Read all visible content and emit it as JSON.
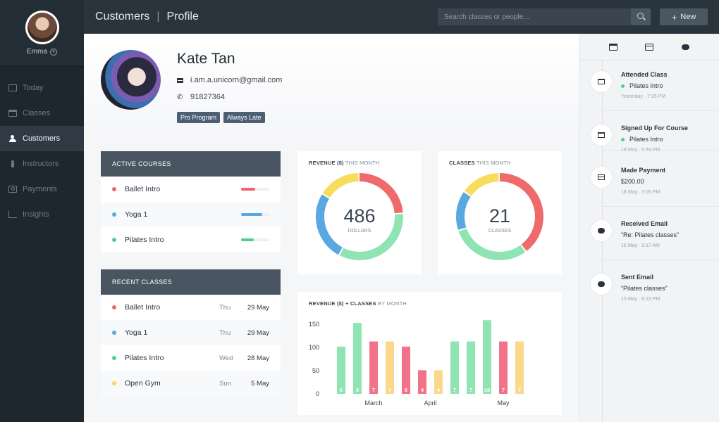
{
  "sidebar": {
    "user": "Emma",
    "items": [
      {
        "label": "Today",
        "icon": "monitor-icon"
      },
      {
        "label": "Classes",
        "icon": "calendar-icon"
      },
      {
        "label": "Customers",
        "icon": "users-icon"
      },
      {
        "label": "Instructors",
        "icon": "person-icon"
      },
      {
        "label": "Payments",
        "icon": "money-icon"
      },
      {
        "label": "Insights",
        "icon": "chart-icon"
      }
    ],
    "active": "Customers"
  },
  "header": {
    "crumb_section": "Customers",
    "crumb_sep": "|",
    "crumb_page": "Profile",
    "search_placeholder": "Search classes or people...",
    "new_label": "New"
  },
  "profile": {
    "name": "Kate Tan",
    "email": "i.am.a.unicorn@gmail.com",
    "phone": "91827364",
    "tags": [
      "Pro Program",
      "Always Late"
    ]
  },
  "active_courses": {
    "title": "ACTIVE COURSES",
    "items": [
      {
        "name": "Ballet Intro",
        "color": "#f0636b",
        "progress": 0.5
      },
      {
        "name": "Yoga 1",
        "color": "#5aa8e0",
        "progress": 0.75
      },
      {
        "name": "Pilates Intro",
        "color": "#4fd08b",
        "progress": 0.45
      }
    ]
  },
  "recent_classes": {
    "title": "RECENT CLASSES",
    "items": [
      {
        "name": "Ballet Intro",
        "day": "Thu",
        "date": "29 May",
        "color": "#f0636b"
      },
      {
        "name": "Yoga 1",
        "day": "Thu",
        "date": "29 May",
        "color": "#5aa8e0"
      },
      {
        "name": "Pilates Intro",
        "day": "Wed",
        "date": "28 May",
        "color": "#4fd08b"
      },
      {
        "name": "Open Gym",
        "day": "Sun",
        "date": "5 May",
        "color": "#f7d85a"
      }
    ]
  },
  "revenue_donut": {
    "title_bold": "REVENUE ($)",
    "title_rest": "THIS MONTH",
    "value": "486",
    "unit": "DOLLARS"
  },
  "classes_donut": {
    "title_bold": "CLASSES",
    "title_rest": "THIS MONTH",
    "value": "21",
    "unit": "CLASSES"
  },
  "monthly": {
    "title_bold": "REVENUE ($) + CLASSES",
    "title_rest": "BY MONTH"
  },
  "chart_data": [
    {
      "type": "pie",
      "variant": "donut",
      "slices": [
        {
          "color": "#ef6b6b",
          "value": 0.24
        },
        {
          "color": "#8fe4b3",
          "value": 0.34
        },
        {
          "color": "#5aa8e0",
          "value": 0.26
        },
        {
          "color": "#f8dc5c",
          "value": 0.16
        }
      ]
    },
    {
      "type": "pie",
      "variant": "donut",
      "slices": [
        {
          "color": "#ef6b6b",
          "value": 0.4
        },
        {
          "color": "#8fe4b3",
          "value": 0.3
        },
        {
          "color": "#5aa8e0",
          "value": 0.15
        },
        {
          "color": "#f8dc5c",
          "value": 0.15
        }
      ]
    },
    {
      "type": "bar",
      "y_ticks": [
        0,
        50,
        100,
        150
      ],
      "ylim": [
        0,
        170
      ],
      "x_labels": [
        {
          "label": "March",
          "at_bar": 2
        },
        {
          "label": "April",
          "at_bar": 5.5
        },
        {
          "label": "May",
          "at_bar": 10
        }
      ],
      "bars": [
        {
          "value": 102,
          "label": "6",
          "color": "#8fe4b3"
        },
        {
          "value": 153,
          "label": "9",
          "color": "#8fe4b3"
        },
        {
          "value": 113,
          "label": "7",
          "color": "#f27388"
        },
        {
          "value": 113,
          "label": "7",
          "color": "#fbd88b"
        },
        {
          "value": 102,
          "label": "6",
          "color": "#f27388"
        },
        {
          "value": 51,
          "label": "4",
          "color": "#f27388"
        },
        {
          "value": 51,
          "label": "4",
          "color": "#fbd88b"
        },
        {
          "value": 113,
          "label": "7",
          "color": "#8fe4b3"
        },
        {
          "value": 113,
          "label": "7",
          "color": "#8fe4b3"
        },
        {
          "value": 159,
          "label": "10",
          "color": "#8fe4b3"
        },
        {
          "value": 113,
          "label": "7",
          "color": "#f27388"
        },
        {
          "value": 113,
          "label": "7",
          "color": "#fbd88b"
        }
      ]
    }
  ],
  "activity": [
    {
      "title": "Attended Class",
      "detail": "Pilates Intro",
      "detail_dot": true,
      "time": "Yesterday  ·  7:15 PM",
      "icon": "cal"
    },
    {
      "title": "Signed Up For Course",
      "detail": "Pilates Intro",
      "detail_dot": true,
      "time": "18 May  ·  5:49 PM",
      "icon": "cal"
    },
    {
      "title": "Made Payment",
      "detail": "$200.00",
      "detail_dot": false,
      "time": "18 May  ·  3:05 PM",
      "icon": "card"
    },
    {
      "title": "Received Email",
      "detail": "“Re: Pilates classes”",
      "detail_dot": false,
      "time": "16 May  ·  9:17 AM",
      "icon": "chat"
    },
    {
      "title": "Sent Email",
      "detail": "“Pilates classes”",
      "detail_dot": false,
      "time": "15 May  ·  8:23 PM",
      "icon": "chat"
    }
  ]
}
